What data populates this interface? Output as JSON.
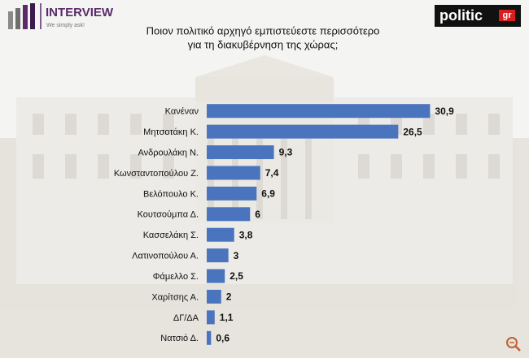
{
  "logos": {
    "left_name": "INTERVIEW",
    "left_tagline": "We simply ask!",
    "right_name": "politic",
    "right_suffix": "gr"
  },
  "chart_data": {
    "type": "hbar",
    "title": [
      "Ποιον πολιτικό αρχηγό εμπιστεύεστε περισσότερο",
      "για τη διακυβέρνηση της χώρας;"
    ],
    "categories": [
      "Κανέναν",
      "Μητσοτάκη Κ.",
      "Ανδρουλάκη Ν.",
      "Κωνσταντοπούλου Ζ.",
      "Βελόπουλο Κ.",
      "Κουτσούμπα Δ.",
      "Κασσελάκη Σ.",
      "Λατινοπούλου Α.",
      "Φάμελλο Σ.",
      "Χαρίτσης Α.",
      "ΔΓ/ΔΑ",
      "Νατσιό Δ."
    ],
    "values": [
      30.9,
      26.5,
      9.3,
      7.4,
      6.9,
      6,
      3.8,
      3,
      2.5,
      2,
      1.1,
      0.6
    ],
    "value_labels": [
      "30,9",
      "26,5",
      "9,3",
      "7,4",
      "6,9",
      "6",
      "3,8",
      "3",
      "2,5",
      "2",
      "1,1",
      "0,6"
    ],
    "color": "#4a74bd",
    "xlim": [
      0,
      42
    ]
  }
}
